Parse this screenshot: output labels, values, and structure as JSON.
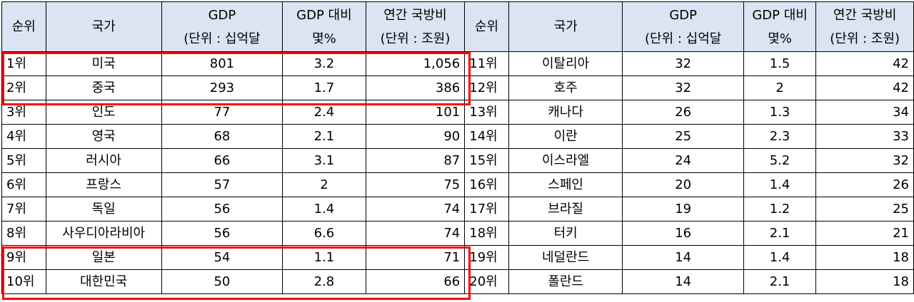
{
  "header": {
    "rank": "순위",
    "country": "국가",
    "gdp_line1": "GDP",
    "gdp_line2": "(단위 : 십억달",
    "ratio_line1": "GDP 대비",
    "ratio_line2": "몇%",
    "budget_line1": "연간 국방비",
    "budget_line2": "(단위 : 조원)"
  },
  "rows_left": [
    {
      "rank": "1위",
      "country": "미국",
      "gdp": "801",
      "ratio": "3.2",
      "budget": "1,056"
    },
    {
      "rank": "2위",
      "country": "중국",
      "gdp": "293",
      "ratio": "1.7",
      "budget": "386"
    },
    {
      "rank": "3위",
      "country": "인도",
      "gdp": "77",
      "ratio": "2.4",
      "budget": "101"
    },
    {
      "rank": "4위",
      "country": "영국",
      "gdp": "68",
      "ratio": "2.1",
      "budget": "90"
    },
    {
      "rank": "5위",
      "country": "러시아",
      "gdp": "66",
      "ratio": "3.1",
      "budget": "87"
    },
    {
      "rank": "6위",
      "country": "프랑스",
      "gdp": "57",
      "ratio": "2",
      "budget": "75"
    },
    {
      "rank": "7위",
      "country": "독일",
      "gdp": "56",
      "ratio": "1.4",
      "budget": "74"
    },
    {
      "rank": "8위",
      "country": "사우디아라비아",
      "gdp": "56",
      "ratio": "6.6",
      "budget": "74"
    },
    {
      "rank": "9위",
      "country": "일본",
      "gdp": "54",
      "ratio": "1.1",
      "budget": "71"
    },
    {
      "rank": "10위",
      "country": "대한민국",
      "gdp": "50",
      "ratio": "2.8",
      "budget": "66"
    }
  ],
  "rows_right": [
    {
      "rank": "11위",
      "country": "이탈리아",
      "gdp": "32",
      "ratio": "1.5",
      "budget": "42"
    },
    {
      "rank": "12위",
      "country": "호주",
      "gdp": "32",
      "ratio": "2",
      "budget": "42"
    },
    {
      "rank": "13위",
      "country": "캐나다",
      "gdp": "26",
      "ratio": "1.3",
      "budget": "34"
    },
    {
      "rank": "14위",
      "country": "이란",
      "gdp": "25",
      "ratio": "2.3",
      "budget": "33"
    },
    {
      "rank": "15위",
      "country": "이스라엘",
      "gdp": "24",
      "ratio": "5.2",
      "budget": "32"
    },
    {
      "rank": "16위",
      "country": "스페인",
      "gdp": "20",
      "ratio": "1.4",
      "budget": "26"
    },
    {
      "rank": "17위",
      "country": "브라질",
      "gdp": "19",
      "ratio": "1.2",
      "budget": "25"
    },
    {
      "rank": "18위",
      "country": "터키",
      "gdp": "16",
      "ratio": "2.1",
      "budget": "21"
    },
    {
      "rank": "19위",
      "country": "네덜란드",
      "gdp": "14",
      "ratio": "1.4",
      "budget": "18"
    },
    {
      "rank": "20위",
      "country": "폴란드",
      "gdp": "14",
      "ratio": "2.1",
      "budget": "18"
    }
  ],
  "colors": {
    "header_bg": "#dbe4f2",
    "highlight": "#ff0000"
  }
}
